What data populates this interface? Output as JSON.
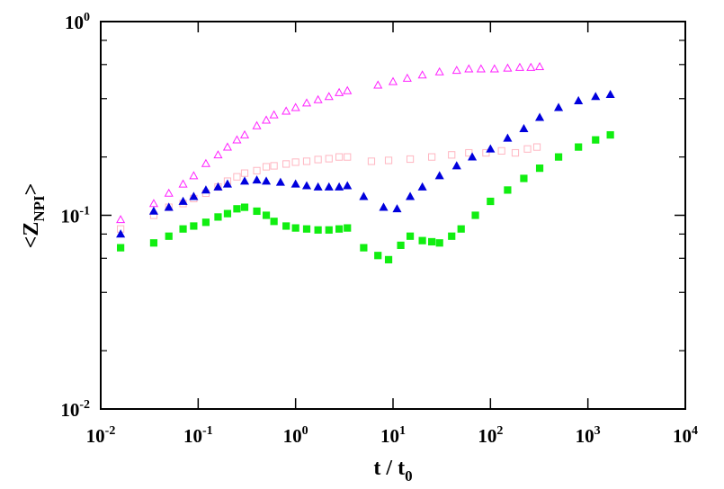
{
  "chart_data": {
    "type": "scatter",
    "title": "",
    "xlabel": "t / t",
    "xlabel_subscript": "0",
    "ylabel": "<Z",
    "ylabel_subscript": "NPI",
    "ylabel_suffix": ">",
    "x_scale": "log",
    "y_scale": "log",
    "xlim": [
      0.01,
      10000
    ],
    "ylim": [
      0.01,
      1
    ],
    "grid": false,
    "legend": "none",
    "x_ticks": [
      {
        "base": "10",
        "exp": "-2"
      },
      {
        "base": "10",
        "exp": "-1"
      },
      {
        "base": "10",
        "exp": "0"
      },
      {
        "base": "10",
        "exp": "1"
      },
      {
        "base": "10",
        "exp": "2"
      },
      {
        "base": "10",
        "exp": "3"
      },
      {
        "base": "10",
        "exp": "4"
      }
    ],
    "y_ticks": [
      {
        "base": "10",
        "exp": "-2"
      },
      {
        "base": "10",
        "exp": "-1"
      },
      {
        "base": "10",
        "exp": "0"
      }
    ],
    "series": [
      {
        "marker": "triangle-open",
        "color": "#ff22ff",
        "x": [
          0.016,
          0.035,
          0.05,
          0.07,
          0.09,
          0.12,
          0.16,
          0.2,
          0.25,
          0.3,
          0.4,
          0.5,
          0.6,
          0.8,
          1.0,
          1.3,
          1.7,
          2.2,
          2.8,
          3.4,
          7.0,
          10,
          14,
          20,
          30,
          45,
          60,
          80,
          110,
          150,
          200,
          260,
          320
        ],
        "y": [
          0.095,
          0.115,
          0.13,
          0.145,
          0.16,
          0.185,
          0.205,
          0.225,
          0.245,
          0.26,
          0.29,
          0.31,
          0.33,
          0.345,
          0.36,
          0.38,
          0.395,
          0.41,
          0.43,
          0.44,
          0.47,
          0.49,
          0.51,
          0.53,
          0.55,
          0.56,
          0.57,
          0.57,
          0.57,
          0.575,
          0.58,
          0.58,
          0.585
        ]
      },
      {
        "marker": "square-open",
        "color": "#ffb6c1",
        "x": [
          0.016,
          0.035,
          0.05,
          0.07,
          0.09,
          0.12,
          0.16,
          0.2,
          0.25,
          0.3,
          0.4,
          0.5,
          0.6,
          0.8,
          1.0,
          1.3,
          1.7,
          2.2,
          2.8,
          3.4,
          6.0,
          9.0,
          15,
          25,
          40,
          60,
          90,
          130,
          180,
          240,
          300
        ],
        "y": [
          0.085,
          0.1,
          0.11,
          0.115,
          0.122,
          0.13,
          0.14,
          0.15,
          0.158,
          0.165,
          0.17,
          0.178,
          0.18,
          0.184,
          0.188,
          0.19,
          0.194,
          0.196,
          0.2,
          0.2,
          0.19,
          0.192,
          0.195,
          0.2,
          0.205,
          0.21,
          0.21,
          0.215,
          0.21,
          0.22,
          0.225
        ]
      },
      {
        "marker": "triangle-filled",
        "color": "#0000dd",
        "x": [
          0.016,
          0.035,
          0.05,
          0.07,
          0.09,
          0.12,
          0.16,
          0.2,
          0.3,
          0.4,
          0.5,
          0.7,
          1.0,
          1.3,
          1.7,
          2.2,
          2.8,
          3.4,
          5.0,
          8.0,
          11,
          15,
          20,
          30,
          45,
          65,
          100,
          150,
          220,
          320,
          500,
          800,
          1200,
          1700
        ],
        "y": [
          0.08,
          0.105,
          0.11,
          0.118,
          0.125,
          0.135,
          0.14,
          0.145,
          0.15,
          0.152,
          0.15,
          0.148,
          0.145,
          0.142,
          0.14,
          0.14,
          0.14,
          0.142,
          0.125,
          0.11,
          0.108,
          0.125,
          0.14,
          0.16,
          0.18,
          0.2,
          0.22,
          0.25,
          0.28,
          0.32,
          0.36,
          0.39,
          0.41,
          0.42
        ]
      },
      {
        "marker": "square-filled",
        "color": "#11ee11",
        "x": [
          0.016,
          0.035,
          0.05,
          0.07,
          0.09,
          0.12,
          0.16,
          0.2,
          0.25,
          0.3,
          0.4,
          0.5,
          0.6,
          0.8,
          1.0,
          1.3,
          1.7,
          2.2,
          2.8,
          3.4,
          5.0,
          7.0,
          9.0,
          12,
          15,
          20,
          25,
          30,
          40,
          50,
          70,
          100,
          150,
          220,
          320,
          500,
          800,
          1200,
          1700
        ],
        "y": [
          0.068,
          0.072,
          0.078,
          0.085,
          0.088,
          0.092,
          0.098,
          0.102,
          0.108,
          0.11,
          0.105,
          0.1,
          0.093,
          0.088,
          0.086,
          0.085,
          0.084,
          0.084,
          0.085,
          0.086,
          0.068,
          0.062,
          0.059,
          0.07,
          0.078,
          0.074,
          0.073,
          0.072,
          0.078,
          0.085,
          0.1,
          0.118,
          0.135,
          0.155,
          0.175,
          0.2,
          0.225,
          0.245,
          0.26
        ]
      }
    ]
  }
}
